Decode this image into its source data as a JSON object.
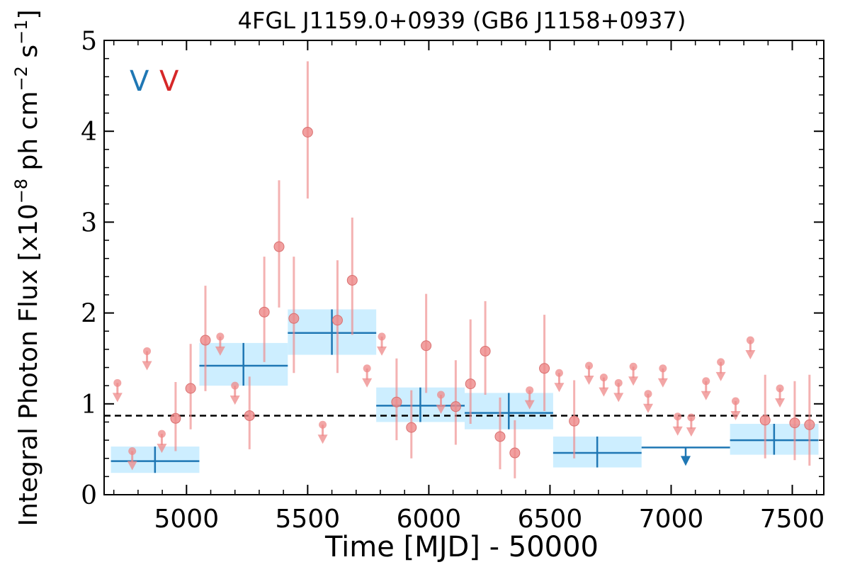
{
  "chart_data": {
    "type": "scatter",
    "title": "4FGL J1159.0+0939 (GB6 J1158+0937)",
    "xlabel": "Time [MJD] - 50000",
    "ylabel_main": "Integral Photon Flux [x10",
    "ylabel_exp1": "−8",
    "ylabel_mid": " ph cm",
    "ylabel_exp2": "−2",
    "ylabel_mid2": " s",
    "ylabel_exp3": "−1",
    "ylabel_end": "]",
    "xlim": [
      4660,
      7630
    ],
    "ylim": [
      0,
      5
    ],
    "xticks": [
      5000,
      5500,
      6000,
      6500,
      7000,
      7500
    ],
    "yticks": [
      0,
      1,
      2,
      3,
      4,
      5
    ],
    "legend": [
      {
        "label": "V",
        "color": "#1f77b4"
      },
      {
        "label": "V",
        "color": "#d62728"
      }
    ],
    "legend_position": "top-left",
    "mean_flux": 0.87,
    "colors": {
      "bin": "#1f77b4",
      "bin_band": "#cdeeff",
      "points": "#ee8888",
      "mean_line": "#000000"
    },
    "binned": [
      {
        "x0": 4688,
        "x1": 5053,
        "y": 0.37,
        "y_lo": 0.24,
        "y_hi": 0.53,
        "xc": 4870,
        "ul": false
      },
      {
        "x0": 5053,
        "x1": 5418,
        "y": 1.42,
        "y_lo": 1.2,
        "y_hi": 1.67,
        "xc": 5235,
        "ul": false
      },
      {
        "x0": 5418,
        "x1": 5783,
        "y": 1.78,
        "y_lo": 1.54,
        "y_hi": 2.04,
        "xc": 5600,
        "ul": false
      },
      {
        "x0": 5783,
        "x1": 6148,
        "y": 0.98,
        "y_lo": 0.8,
        "y_hi": 1.18,
        "xc": 5965,
        "ul": false
      },
      {
        "x0": 6148,
        "x1": 6513,
        "y": 0.9,
        "y_lo": 0.72,
        "y_hi": 1.12,
        "xc": 6330,
        "ul": false
      },
      {
        "x0": 6513,
        "x1": 6878,
        "y": 0.46,
        "y_lo": 0.3,
        "y_hi": 0.64,
        "xc": 6695,
        "ul": false
      },
      {
        "x0": 6878,
        "x1": 7243,
        "y": 0.52,
        "xc": 7060,
        "ul": true
      },
      {
        "x0": 7243,
        "x1": 7608,
        "y": 0.6,
        "y_lo": 0.44,
        "y_hi": 0.78,
        "xc": 7425,
        "ul": false
      }
    ],
    "monthly": [
      {
        "x": 4715,
        "y": 1.23,
        "ul": true
      },
      {
        "x": 4776,
        "y": 0.48,
        "ul": true
      },
      {
        "x": 4837,
        "y": 1.58,
        "ul": true
      },
      {
        "x": 4898,
        "y": 0.67,
        "ul": true
      },
      {
        "x": 4955,
        "y": 0.84,
        "y_lo": 0.48,
        "y_hi": 1.24,
        "ul": false
      },
      {
        "x": 5017,
        "y": 1.17,
        "y_lo": 0.72,
        "y_hi": 1.66,
        "ul": false
      },
      {
        "x": 5078,
        "y": 1.7,
        "y_lo": 1.14,
        "y_hi": 2.3,
        "ul": false
      },
      {
        "x": 5139,
        "y": 1.74,
        "ul": true
      },
      {
        "x": 5200,
        "y": 1.2,
        "ul": true
      },
      {
        "x": 5260,
        "y": 0.87,
        "y_lo": 0.5,
        "y_hi": 1.3,
        "ul": false
      },
      {
        "x": 5321,
        "y": 2.01,
        "y_lo": 1.46,
        "y_hi": 2.62,
        "ul": false
      },
      {
        "x": 5382,
        "y": 2.73,
        "y_lo": 2.06,
        "y_hi": 3.46,
        "ul": false
      },
      {
        "x": 5443,
        "y": 1.94,
        "y_lo": 1.34,
        "y_hi": 2.62,
        "ul": false
      },
      {
        "x": 5500,
        "y": 3.99,
        "y_lo": 3.26,
        "y_hi": 4.77,
        "ul": false
      },
      {
        "x": 5562,
        "y": 0.77,
        "ul": true
      },
      {
        "x": 5623,
        "y": 1.92,
        "y_lo": 1.34,
        "y_hi": 2.58,
        "ul": false
      },
      {
        "x": 5684,
        "y": 2.36,
        "y_lo": 1.76,
        "y_hi": 3.05,
        "ul": false
      },
      {
        "x": 5745,
        "y": 1.39,
        "ul": true
      },
      {
        "x": 5806,
        "y": 1.74,
        "ul": true
      },
      {
        "x": 5867,
        "y": 1.02,
        "y_lo": 0.6,
        "y_hi": 1.5,
        "ul": false
      },
      {
        "x": 5928,
        "y": 0.74,
        "y_lo": 0.4,
        "y_hi": 1.15,
        "ul": false
      },
      {
        "x": 5989,
        "y": 1.64,
        "y_lo": 1.12,
        "y_hi": 2.21,
        "ul": false
      },
      {
        "x": 6050,
        "y": 1.1,
        "ul": true
      },
      {
        "x": 6111,
        "y": 0.97,
        "y_lo": 0.55,
        "y_hi": 1.48,
        "ul": false
      },
      {
        "x": 6172,
        "y": 1.22,
        "y_lo": 0.78,
        "y_hi": 1.93,
        "ul": false
      },
      {
        "x": 6233,
        "y": 1.58,
        "y_lo": 1.1,
        "y_hi": 2.13,
        "ul": false
      },
      {
        "x": 6294,
        "y": 0.64,
        "y_lo": 0.28,
        "y_hi": 1.07,
        "ul": false
      },
      {
        "x": 6355,
        "y": 0.46,
        "y_lo": 0.18,
        "y_hi": 0.82,
        "ul": false
      },
      {
        "x": 6416,
        "y": 1.15,
        "ul": true
      },
      {
        "x": 6477,
        "y": 1.39,
        "y_lo": 0.92,
        "y_hi": 1.98,
        "ul": false
      },
      {
        "x": 6538,
        "y": 1.34,
        "ul": true
      },
      {
        "x": 6600,
        "y": 0.81,
        "y_lo": 0.4,
        "y_hi": 1.26,
        "ul": false
      },
      {
        "x": 6661,
        "y": 1.42,
        "ul": true
      },
      {
        "x": 6722,
        "y": 1.29,
        "ul": true
      },
      {
        "x": 6783,
        "y": 1.23,
        "ul": true
      },
      {
        "x": 6844,
        "y": 1.41,
        "ul": true
      },
      {
        "x": 6905,
        "y": 1.11,
        "ul": true
      },
      {
        "x": 6966,
        "y": 1.39,
        "ul": true
      },
      {
        "x": 7027,
        "y": 0.86,
        "ul": true
      },
      {
        "x": 7083,
        "y": 0.85,
        "ul": true
      },
      {
        "x": 7144,
        "y": 1.25,
        "ul": true
      },
      {
        "x": 7205,
        "y": 1.46,
        "ul": true
      },
      {
        "x": 7266,
        "y": 1.03,
        "ul": true
      },
      {
        "x": 7327,
        "y": 1.7,
        "ul": true
      },
      {
        "x": 7388,
        "y": 0.82,
        "y_lo": 0.4,
        "y_hi": 1.32,
        "ul": false
      },
      {
        "x": 7449,
        "y": 1.17,
        "ul": true
      },
      {
        "x": 7510,
        "y": 0.79,
        "y_lo": 0.38,
        "y_hi": 1.25,
        "ul": false
      },
      {
        "x": 7571,
        "y": 0.77,
        "y_lo": 0.32,
        "y_hi": 1.32,
        "ul": false
      }
    ]
  }
}
